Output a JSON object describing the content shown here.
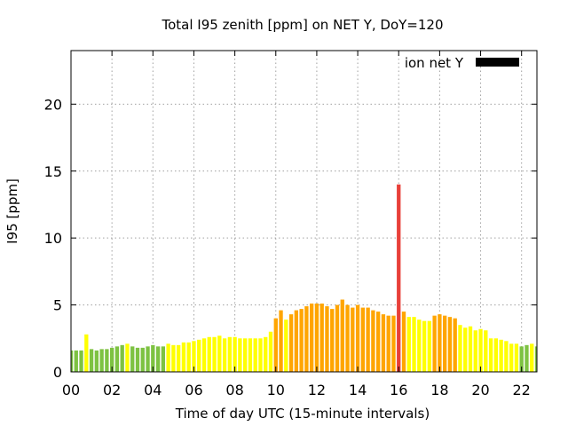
{
  "chart_data": {
    "type": "bar",
    "title": "Total I95 zenith [ppm] on NET Y, DoY=120",
    "xlabel": "Time of day UTC (15-minute intervals)",
    "ylabel": "I95 [ppm]",
    "xlim": [
      0,
      22.75
    ],
    "ylim": [
      0,
      24
    ],
    "xticks": [
      "00",
      "02",
      "04",
      "06",
      "08",
      "10",
      "12",
      "14",
      "16",
      "18",
      "20",
      "22"
    ],
    "yticks": [
      "0",
      "5",
      "10",
      "15",
      "20"
    ],
    "grid": true,
    "legend": {
      "position": "top-right",
      "label": "ion net Y",
      "color": "#000000"
    },
    "interval_hours": 0.25,
    "colors": {
      "green": "#7dc242",
      "yellow": "#ffff00",
      "orange": "#ffa500",
      "red": "#e8403a"
    },
    "values": [
      1.6,
      1.6,
      1.6,
      2.8,
      1.7,
      1.6,
      1.7,
      1.7,
      1.8,
      1.9,
      2.0,
      2.1,
      1.9,
      1.8,
      1.8,
      1.9,
      2.0,
      1.9,
      1.9,
      2.1,
      2.0,
      2.0,
      2.2,
      2.2,
      2.3,
      2.4,
      2.5,
      2.6,
      2.6,
      2.7,
      2.5,
      2.6,
      2.6,
      2.5,
      2.5,
      2.5,
      2.5,
      2.5,
      2.6,
      3.0,
      4.0,
      4.6,
      3.9,
      4.3,
      4.6,
      4.7,
      4.9,
      5.1,
      5.1,
      5.1,
      4.9,
      4.7,
      5.0,
      5.4,
      5.0,
      4.8,
      5.0,
      4.8,
      4.8,
      4.6,
      4.5,
      4.3,
      4.2,
      4.2,
      14.0,
      4.5,
      4.1,
      4.1,
      3.9,
      3.8,
      3.8,
      4.2,
      4.3,
      4.2,
      4.1,
      4.0,
      3.5,
      3.3,
      3.4,
      3.1,
      3.2,
      3.1,
      2.5,
      2.5,
      2.4,
      2.3,
      2.1,
      2.1,
      1.9,
      2.0,
      2.1,
      1.9
    ],
    "bar_colors": [
      "green",
      "green",
      "green",
      "yellow",
      "green",
      "green",
      "green",
      "green",
      "green",
      "green",
      "green",
      "yellow",
      "green",
      "green",
      "green",
      "green",
      "green",
      "green",
      "green",
      "yellow",
      "yellow",
      "yellow",
      "yellow",
      "yellow",
      "yellow",
      "yellow",
      "yellow",
      "yellow",
      "yellow",
      "yellow",
      "yellow",
      "yellow",
      "yellow",
      "yellow",
      "yellow",
      "yellow",
      "yellow",
      "yellow",
      "yellow",
      "yellow",
      "orange",
      "orange",
      "yellow",
      "orange",
      "orange",
      "orange",
      "orange",
      "orange",
      "orange",
      "orange",
      "orange",
      "orange",
      "orange",
      "orange",
      "orange",
      "orange",
      "orange",
      "orange",
      "orange",
      "orange",
      "orange",
      "orange",
      "orange",
      "orange",
      "red",
      "orange",
      "yellow",
      "yellow",
      "yellow",
      "yellow",
      "yellow",
      "orange",
      "orange",
      "orange",
      "orange",
      "orange",
      "yellow",
      "yellow",
      "yellow",
      "yellow",
      "yellow",
      "yellow",
      "yellow",
      "yellow",
      "yellow",
      "yellow",
      "yellow",
      "yellow",
      "green",
      "green",
      "yellow",
      "green"
    ]
  }
}
